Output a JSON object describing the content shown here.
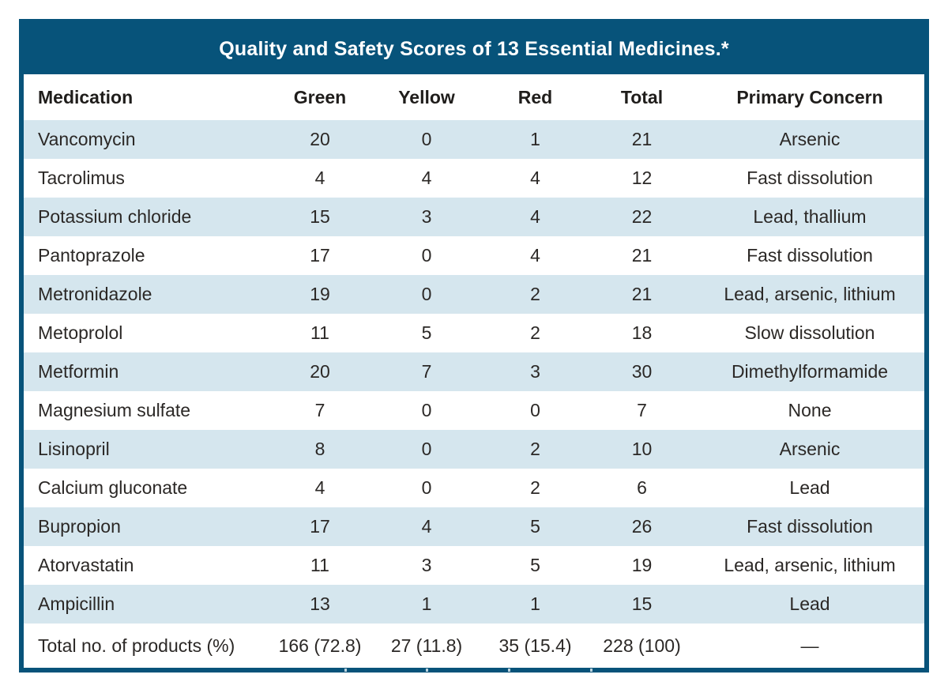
{
  "table": {
    "title": "Quality and Safety Scores of 13 Essential Medicines.*",
    "columns": [
      "Medication",
      "Green",
      "Yellow",
      "Red",
      "Total",
      "Primary Concern"
    ],
    "rows": [
      [
        "Vancomycin",
        "20",
        "0",
        "1",
        "21",
        "Arsenic"
      ],
      [
        "Tacrolimus",
        "4",
        "4",
        "4",
        "12",
        "Fast dissolution"
      ],
      [
        "Potassium chloride",
        "15",
        "3",
        "4",
        "22",
        "Lead, thallium"
      ],
      [
        "Pantoprazole",
        "17",
        "0",
        "4",
        "21",
        "Fast dissolution"
      ],
      [
        "Metronidazole",
        "19",
        "0",
        "2",
        "21",
        "Lead, arsenic, lithium"
      ],
      [
        "Metoprolol",
        "11",
        "5",
        "2",
        "18",
        "Slow dissolution"
      ],
      [
        "Metformin",
        "20",
        "7",
        "3",
        "30",
        "Dimethylformamide"
      ],
      [
        "Magnesium sulfate",
        "7",
        "0",
        "0",
        "7",
        "None"
      ],
      [
        "Lisinopril",
        "8",
        "0",
        "2",
        "10",
        "Arsenic"
      ],
      [
        "Calcium gluconate",
        "4",
        "0",
        "2",
        "6",
        "Lead"
      ],
      [
        "Bupropion",
        "17",
        "4",
        "5",
        "26",
        "Fast dissolution"
      ],
      [
        "Atorvastatin",
        "11",
        "3",
        "5",
        "19",
        "Lead, arsenic, lithium"
      ],
      [
        "Ampicillin",
        "13",
        "1",
        "1",
        "15",
        "Lead"
      ]
    ],
    "total_row": [
      "Total no. of products (%)",
      "166 (72.8)",
      "27 (11.8)",
      "35 (15.4)",
      "228 (100)",
      "—"
    ]
  },
  "colors": {
    "frame_teal": "#07537a",
    "stripe_blue": "#d5e6ee",
    "text": "#2b2826",
    "title_text": "#ffffff"
  }
}
